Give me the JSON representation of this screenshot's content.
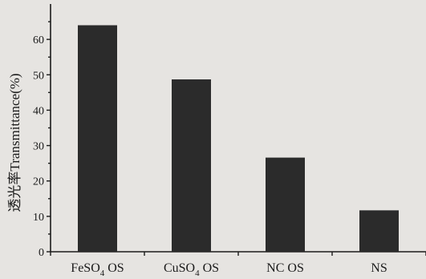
{
  "chart_data": {
    "type": "bar",
    "categories": [
      "FeSO4 OS",
      "CuSO4 OS",
      "NC OS",
      "NS"
    ],
    "category_labels": [
      {
        "main": "FeSO",
        "sub": "4",
        "tail": " OS"
      },
      {
        "main": "CuSO",
        "sub": "4",
        "tail": " OS"
      },
      {
        "main": "NC OS",
        "sub": "",
        "tail": ""
      },
      {
        "main": "NS",
        "sub": "",
        "tail": ""
      }
    ],
    "values": [
      64,
      48.7,
      26.6,
      11.7
    ],
    "ylabel": "透光率Transmittance(%)",
    "xlabel": "",
    "title": "",
    "ylim": [
      0,
      70
    ],
    "yticks": [
      0,
      10,
      20,
      30,
      40,
      50,
      60
    ],
    "grid": false,
    "bar_color": "#2b2b2b",
    "background_color": "#e6e4e1"
  }
}
